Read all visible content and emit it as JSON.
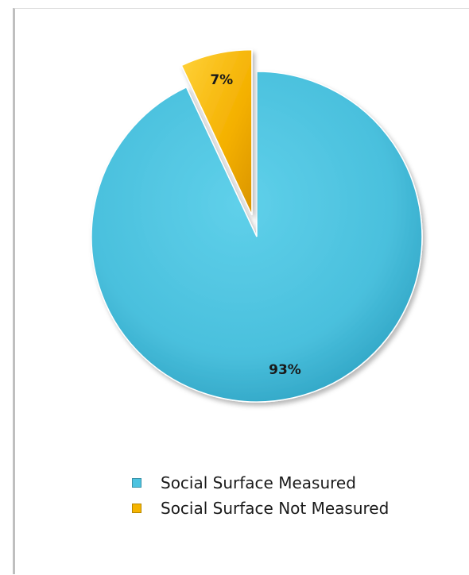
{
  "chart_data": {
    "type": "pie",
    "title": "",
    "series": [
      {
        "values": [
          93,
          7
        ]
      }
    ],
    "categories": [
      "Social Surface Measured",
      "Social Surface Not Measured"
    ],
    "data_labels": [
      "93%",
      "7%"
    ],
    "colors": [
      "#4cc3e0",
      "#f5b400"
    ],
    "exploded": [
      "",
      "Social Surface Not Measured"
    ],
    "legend_position": "bottom"
  },
  "legend": {
    "items": [
      {
        "label": "Social Surface Measured"
      },
      {
        "label": "Social Surface Not Measured"
      }
    ]
  }
}
